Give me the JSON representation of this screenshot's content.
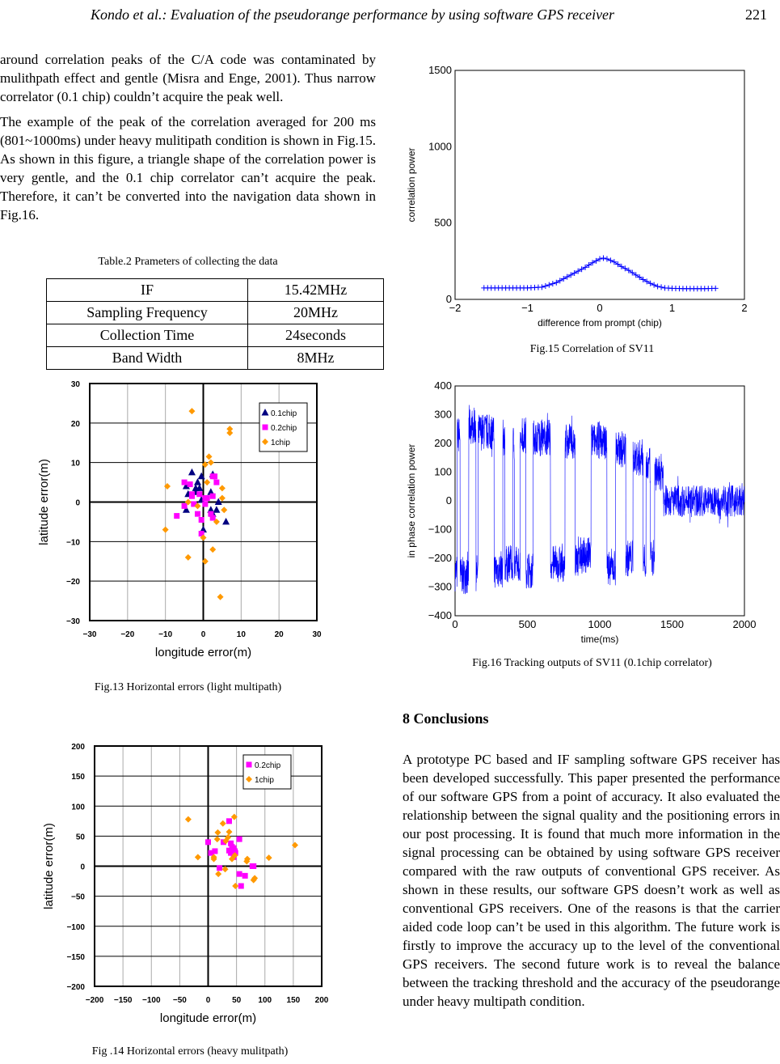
{
  "header": {
    "running_title": "Kondo et al.: Evaluation of the pseudorange performance by using software GPS receiver",
    "page_number": "221"
  },
  "left_text": {
    "p1": "around correlation peaks of the C/A code was contaminated by mulithpath effect and gentle (Misra and Enge, 2001). Thus narrow correlator (0.1 chip) couldn’t acquire the peak well.",
    "p2": "The example of the peak of the correlation averaged for 200 ms (801~1000ms) under heavy mulitipath condition is shown in Fig.15. As shown in this figure, a triangle shape of the correlation power is very gentle, and the 0.1 chip correlator can’t acquire the peak. Therefore, it can’t be converted into the navigation data shown in Fig.16."
  },
  "table": {
    "caption": "Table.2 Prameters of collecting the data",
    "rows": [
      [
        "IF",
        "15.42MHz"
      ],
      [
        "Sampling Frequency",
        "20MHz"
      ],
      [
        "Collection Time",
        "24seconds"
      ],
      [
        "Band Width",
        "8MHz"
      ]
    ]
  },
  "captions": {
    "fig13": "Fig.13 Horizontal errors (light multipath)",
    "fig14": "Fig .14 Horizontal errors (heavy mulitpath)",
    "fig15": "Fig.15 Correlation of SV11",
    "fig16": "Fig.16 Tracking outputs of SV11 (0.1chip correlator)"
  },
  "conclusions": {
    "heading": "8 Conclusions",
    "body": "A prototype PC based and IF sampling software GPS receiver has been developed successfully. This paper presented the performance of our software GPS from a point of accuracy. It also evaluated the relationship between the signal quality and the positioning errors in our post processing. It is found that much more information in the signal processing can be obtained by using software GPS receiver compared with the raw outputs of conventional GPS receiver. As shown in these results, our software GPS doesn’t work as well as conventional GPS receivers. One of the reasons is that the carrier aided code loop can’t be used in this algorithm. The future work is firstly to improve the accuracy up to the level of the conventional GPS receivers. The second future work is to reveal the balance between the tracking threshold and the accuracy of the pseudorange under heavy multipath condition."
  },
  "chart_data": [
    {
      "id": "fig13",
      "type": "scatter",
      "xlabel": "longitude error(m)",
      "ylabel": "latitude error(m)",
      "xlim": [
        -30,
        30
      ],
      "ylim": [
        -30,
        30
      ],
      "xticks": [
        -30,
        -20,
        -10,
        0,
        10,
        20,
        30
      ],
      "yticks": [
        -30,
        -20,
        -10,
        0,
        10,
        20,
        30
      ],
      "legend": "top-right",
      "grid": true,
      "series": [
        {
          "name": "0.1chip",
          "marker": "triangle",
          "color": "#000080",
          "points": [
            [
              -3,
              7.5
            ],
            [
              -0.5,
              6.5
            ],
            [
              -1.5,
              5
            ],
            [
              -4.5,
              4
            ],
            [
              -2,
              3.5
            ],
            [
              -1,
              3.5
            ],
            [
              -2,
              2.5
            ],
            [
              -4,
              2
            ],
            [
              -0.5,
              0.5
            ],
            [
              2,
              2.5
            ],
            [
              4,
              0
            ],
            [
              2,
              -2
            ],
            [
              3.5,
              -2
            ],
            [
              2.5,
              -3
            ],
            [
              6,
              -5
            ],
            [
              0,
              -7
            ],
            [
              -4.5,
              -2
            ],
            [
              2.5,
              7
            ]
          ]
        },
        {
          "name": "0.2chip",
          "marker": "square",
          "color": "#ff00ff",
          "points": [
            [
              -5,
              5
            ],
            [
              -3.5,
              4.5
            ],
            [
              2.5,
              6.5
            ],
            [
              3,
              6.5
            ],
            [
              3.5,
              5
            ],
            [
              -3,
              2
            ],
            [
              -3,
              1.5
            ],
            [
              -1,
              2
            ],
            [
              0.5,
              1
            ],
            [
              2.5,
              1.5
            ],
            [
              0.5,
              -0.5
            ],
            [
              -5,
              -1
            ],
            [
              -2.5,
              -0.5
            ],
            [
              -1.5,
              -3
            ],
            [
              -7,
              -3.5
            ],
            [
              -0.5,
              -4.5
            ],
            [
              2,
              -3
            ],
            [
              2.5,
              -4
            ],
            [
              -0.5,
              -8
            ],
            [
              1,
              1
            ]
          ]
        },
        {
          "name": "1chip",
          "marker": "diamond",
          "color": "#ff9900",
          "points": [
            [
              -3,
              23
            ],
            [
              7,
              18.5
            ],
            [
              7,
              17.5
            ],
            [
              1.5,
              11.5
            ],
            [
              2,
              10
            ],
            [
              0.5,
              9.5
            ],
            [
              1,
              5
            ],
            [
              5,
              3.5
            ],
            [
              -9.5,
              4
            ],
            [
              5,
              1
            ],
            [
              -4,
              0
            ],
            [
              -1.5,
              -1
            ],
            [
              5.5,
              -2
            ],
            [
              3.5,
              -5
            ],
            [
              -10,
              -7
            ],
            [
              0,
              -9
            ],
            [
              2.5,
              -12
            ],
            [
              -4,
              -14
            ],
            [
              0.5,
              -15
            ],
            [
              4.5,
              -24
            ]
          ]
        }
      ]
    },
    {
      "id": "fig14",
      "type": "scatter",
      "xlabel": "longitude error(m)",
      "ylabel": "latitude error(m)",
      "xlim": [
        -200,
        200
      ],
      "ylim": [
        -200,
        200
      ],
      "xticks": [
        -200,
        -150,
        -100,
        -50,
        0,
        50,
        100,
        150,
        200
      ],
      "yticks": [
        -200,
        -150,
        -100,
        -50,
        0,
        50,
        100,
        150,
        200
      ],
      "legend": "top-right",
      "grid": true,
      "series": [
        {
          "name": "0.2chip",
          "marker": "square",
          "color": "#ff00ff",
          "points": [
            [
              0,
              40
            ],
            [
              5,
              22
            ],
            [
              12,
              25
            ],
            [
              27,
              40
            ],
            [
              37,
              75
            ],
            [
              40,
              38
            ],
            [
              55,
              45
            ],
            [
              37,
              26
            ],
            [
              40,
              22
            ],
            [
              45,
              30
            ],
            [
              48,
              22
            ],
            [
              45,
              15
            ],
            [
              20,
              -3
            ],
            [
              78,
              0
            ],
            [
              80,
              0
            ],
            [
              55,
              -13
            ],
            [
              65,
              -16
            ],
            [
              58,
              -33
            ],
            [
              42,
              32
            ],
            [
              47,
              25
            ]
          ]
        },
        {
          "name": "1chip",
          "marker": "diamond",
          "color": "#ff9900",
          "points": [
            [
              -35,
              78
            ],
            [
              -18,
              15
            ],
            [
              10,
              15
            ],
            [
              10,
              12
            ],
            [
              18,
              -13
            ],
            [
              17,
              56
            ],
            [
              16,
              45
            ],
            [
              26,
              71
            ],
            [
              46,
              82
            ],
            [
              37,
              57
            ],
            [
              35,
              48
            ],
            [
              31,
              42
            ],
            [
              42,
              12
            ],
            [
              47,
              18
            ],
            [
              30,
              -5
            ],
            [
              48,
              -33
            ],
            [
              69,
              12
            ],
            [
              68,
              8
            ],
            [
              80,
              -23
            ],
            [
              82,
              -20
            ],
            [
              107,
              14
            ],
            [
              153,
              35
            ]
          ]
        }
      ]
    },
    {
      "id": "fig15",
      "type": "line",
      "xlabel": "difference from prompt (chip)",
      "ylabel": "correlation power",
      "xlim": [
        -2,
        2
      ],
      "ylim": [
        0,
        1500
      ],
      "xticks": [
        -2,
        -1,
        0,
        1,
        2
      ],
      "yticks": [
        0,
        500,
        1000,
        1500
      ],
      "color": "#0000ff",
      "x": [
        -1.6,
        -1.4,
        -1.2,
        -1.0,
        -0.8,
        -0.7,
        -0.6,
        -0.5,
        -0.4,
        -0.3,
        -0.2,
        -0.1,
        0,
        0.05,
        0.1,
        0.2,
        0.3,
        0.4,
        0.5,
        0.6,
        0.7,
        0.8,
        0.9,
        1.0,
        1.2,
        1.4,
        1.6
      ],
      "y": [
        75,
        75,
        75,
        75,
        80,
        95,
        110,
        135,
        160,
        185,
        210,
        240,
        265,
        270,
        265,
        245,
        215,
        190,
        160,
        130,
        105,
        85,
        75,
        72,
        70,
        70,
        72
      ]
    },
    {
      "id": "fig16",
      "type": "line",
      "xlabel": "time(ms)",
      "ylabel": "in phase correlation power",
      "xlim": [
        0,
        2000
      ],
      "ylim": [
        -400,
        400
      ],
      "xticks": [
        0,
        500,
        1000,
        1500,
        2000
      ],
      "yticks": [
        -400,
        -300,
        -200,
        -100,
        0,
        100,
        200,
        300,
        400
      ],
      "color": "#0000ff",
      "segments_ms_level": [
        [
          0,
          15,
          -250
        ],
        [
          15,
          35,
          230
        ],
        [
          35,
          95,
          -260
        ],
        [
          95,
          145,
          260
        ],
        [
          145,
          160,
          -250
        ],
        [
          160,
          270,
          240
        ],
        [
          270,
          330,
          -240
        ],
        [
          330,
          345,
          220
        ],
        [
          345,
          400,
          -220
        ],
        [
          400,
          410,
          200
        ],
        [
          410,
          450,
          -220
        ],
        [
          450,
          490,
          230
        ],
        [
          490,
          540,
          -240
        ],
        [
          540,
          660,
          220
        ],
        [
          660,
          760,
          -220
        ],
        [
          760,
          830,
          210
        ],
        [
          830,
          860,
          -210
        ],
        [
          860,
          940,
          -190
        ],
        [
          940,
          1050,
          210
        ],
        [
          1050,
          1110,
          -230
        ],
        [
          1110,
          1180,
          180
        ],
        [
          1180,
          1230,
          -200
        ],
        [
          1230,
          1300,
          150
        ],
        [
          1300,
          1320,
          -200
        ],
        [
          1320,
          1350,
          120
        ],
        [
          1350,
          1380,
          -200
        ],
        [
          1380,
          1440,
          100
        ],
        [
          1440,
          2000,
          0
        ]
      ]
    }
  ]
}
